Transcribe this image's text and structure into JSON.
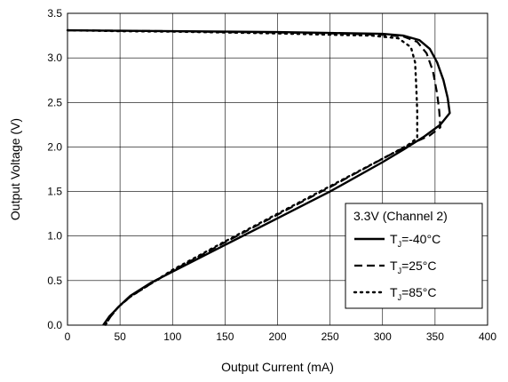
{
  "chart_data": {
    "type": "line",
    "title": "",
    "xlabel": "Output Current (mA)",
    "ylabel": "Output Voltage (V)",
    "xlim": [
      0,
      400
    ],
    "ylim": [
      0,
      3.5
    ],
    "x_ticks": [
      0,
      50,
      100,
      150,
      200,
      250,
      300,
      350,
      400
    ],
    "y_ticks": [
      0.0,
      0.5,
      1.0,
      1.5,
      2.0,
      2.5,
      3.0,
      3.5
    ],
    "x_tick_labels": [
      "0",
      "50",
      "100",
      "150",
      "200",
      "250",
      "300",
      "350",
      "400"
    ],
    "y_tick_labels": [
      "0.0",
      "0.5",
      "1.0",
      "1.5",
      "2.0",
      "2.5",
      "3.0",
      "3.5"
    ],
    "grid": true,
    "legend": {
      "title": "3.3V (Channel 2)",
      "placement": "bottom-right"
    },
    "series": [
      {
        "label_main": "T",
        "label_sub": "J",
        "label_rest": "=-40°C",
        "style": "solid",
        "points": [
          [
            0,
            3.31
          ],
          [
            50,
            3.305
          ],
          [
            100,
            3.3
          ],
          [
            150,
            3.295
          ],
          [
            200,
            3.29
          ],
          [
            250,
            3.28
          ],
          [
            300,
            3.27
          ],
          [
            320,
            3.25
          ],
          [
            335,
            3.2
          ],
          [
            345,
            3.1
          ],
          [
            352,
            2.95
          ],
          [
            358,
            2.75
          ],
          [
            362,
            2.55
          ],
          [
            364,
            2.38
          ],
          [
            355,
            2.25
          ],
          [
            340,
            2.12
          ],
          [
            320,
            1.97
          ],
          [
            300,
            1.83
          ],
          [
            250,
            1.5
          ],
          [
            200,
            1.2
          ],
          [
            150,
            0.9
          ],
          [
            100,
            0.6
          ],
          [
            80,
            0.48
          ],
          [
            60,
            0.33
          ],
          [
            50,
            0.22
          ],
          [
            40,
            0.1
          ],
          [
            34,
            0.0
          ]
        ]
      },
      {
        "label_main": "T",
        "label_sub": "J",
        "label_rest": "=25°C",
        "style": "dashed",
        "points": [
          [
            0,
            3.31
          ],
          [
            50,
            3.305
          ],
          [
            100,
            3.3
          ],
          [
            150,
            3.29
          ],
          [
            200,
            3.285
          ],
          [
            250,
            3.275
          ],
          [
            300,
            3.26
          ],
          [
            320,
            3.24
          ],
          [
            333,
            3.18
          ],
          [
            342,
            3.05
          ],
          [
            348,
            2.85
          ],
          [
            352,
            2.6
          ],
          [
            354,
            2.4
          ],
          [
            355,
            2.22
          ],
          [
            345,
            2.13
          ],
          [
            330,
            2.05
          ],
          [
            305,
            1.9
          ],
          [
            250,
            1.55
          ],
          [
            200,
            1.24
          ],
          [
            150,
            0.93
          ],
          [
            100,
            0.61
          ],
          [
            80,
            0.47
          ],
          [
            60,
            0.32
          ],
          [
            48,
            0.2
          ],
          [
            40,
            0.08
          ],
          [
            36,
            0.0
          ]
        ]
      },
      {
        "label_main": "T",
        "label_sub": "J",
        "label_rest": "=85°C",
        "style": "dotted",
        "points": [
          [
            0,
            3.31
          ],
          [
            50,
            3.3
          ],
          [
            100,
            3.295
          ],
          [
            150,
            3.285
          ],
          [
            200,
            3.275
          ],
          [
            250,
            3.26
          ],
          [
            290,
            3.25
          ],
          [
            315,
            3.22
          ],
          [
            327,
            3.12
          ],
          [
            331,
            2.95
          ],
          [
            332,
            2.7
          ],
          [
            333,
            2.4
          ],
          [
            333,
            2.1
          ],
          [
            324,
            2.02
          ],
          [
            305,
            1.9
          ],
          [
            250,
            1.56
          ],
          [
            200,
            1.25
          ],
          [
            150,
            0.94
          ],
          [
            100,
            0.62
          ],
          [
            80,
            0.47
          ],
          [
            60,
            0.32
          ],
          [
            48,
            0.2
          ],
          [
            40,
            0.08
          ],
          [
            36,
            0.0
          ]
        ]
      }
    ]
  }
}
